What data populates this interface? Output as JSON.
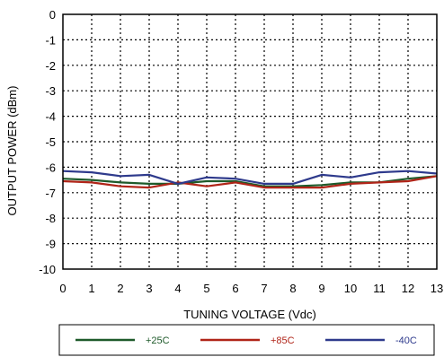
{
  "chart_data": {
    "type": "line",
    "title": "",
    "xlabel": "TUNING VOLTAGE (Vdc)",
    "ylabel": "OUTPUT POWER (dBm)",
    "xlim": [
      0,
      13
    ],
    "ylim": [
      -10,
      0
    ],
    "xticks": [
      0,
      1,
      2,
      3,
      4,
      5,
      6,
      7,
      8,
      9,
      10,
      11,
      12,
      13
    ],
    "yticks": [
      0,
      -1,
      -2,
      -3,
      -4,
      -5,
      -6,
      -7,
      -8,
      -9,
      -10
    ],
    "grid": true,
    "grid_style": "dotted",
    "legend_position": "bottom",
    "x": [
      0,
      1,
      2,
      3,
      4,
      5,
      6,
      7,
      8,
      9,
      10,
      11,
      12,
      13
    ],
    "series": [
      {
        "name": "+25C",
        "color": "#1e5a2a",
        "values": [
          -6.45,
          -6.5,
          -6.6,
          -6.65,
          -6.65,
          -6.55,
          -6.55,
          -6.75,
          -6.75,
          -6.7,
          -6.6,
          -6.6,
          -6.45,
          -6.35
        ]
      },
      {
        "name": "+85C",
        "color": "#b02418",
        "values": [
          -6.55,
          -6.6,
          -6.75,
          -6.8,
          -6.6,
          -6.75,
          -6.6,
          -6.8,
          -6.8,
          -6.8,
          -6.65,
          -6.6,
          -6.55,
          -6.35
        ]
      },
      {
        "name": "-40C",
        "color": "#2e3a8c",
        "values": [
          -6.15,
          -6.2,
          -6.35,
          -6.3,
          -6.65,
          -6.4,
          -6.45,
          -6.65,
          -6.65,
          -6.3,
          -6.4,
          -6.2,
          -6.15,
          -6.25
        ]
      }
    ]
  }
}
